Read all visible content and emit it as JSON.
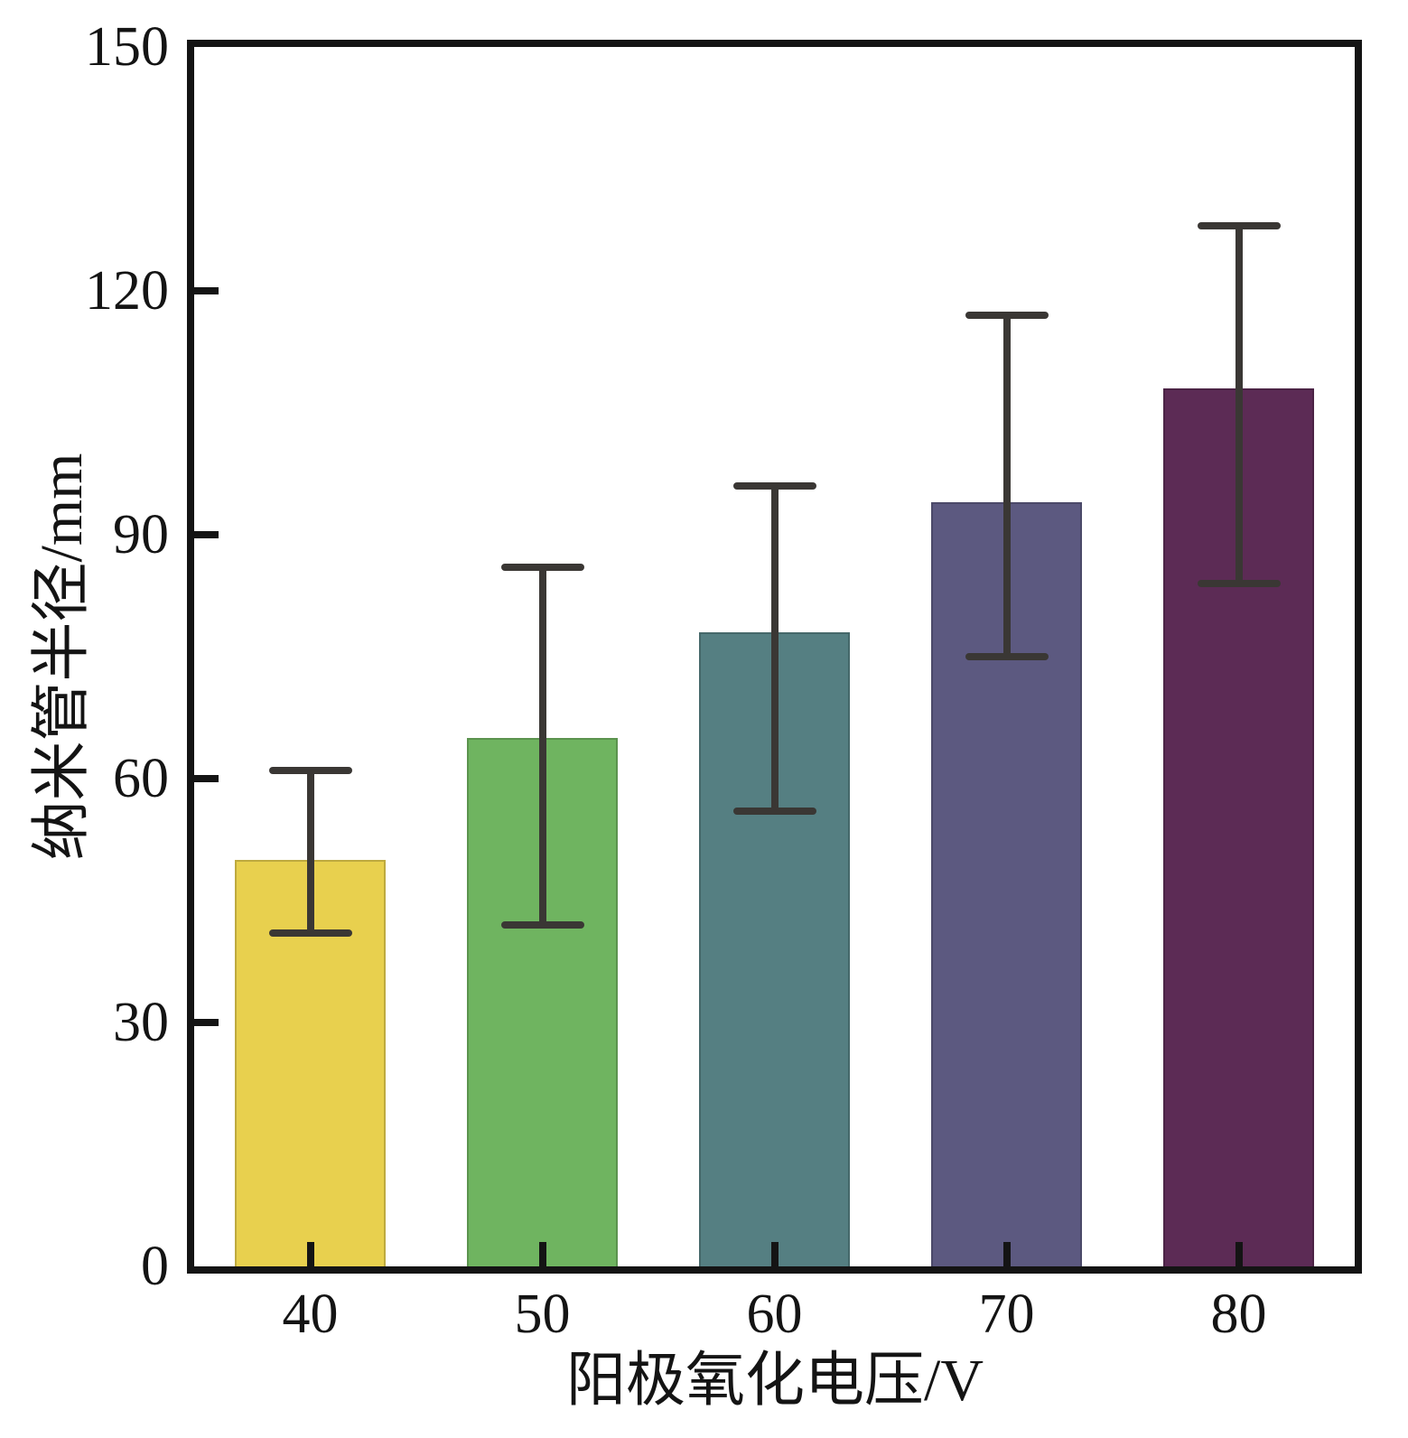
{
  "chart_data": {
    "type": "bar",
    "title": "",
    "xlabel": "阳极氧化电压/V",
    "ylabel": "纳米管半径/mm",
    "categories": [
      "40",
      "50",
      "60",
      "70",
      "80"
    ],
    "values": [
      50,
      65,
      78,
      94,
      108
    ],
    "errors": [
      {
        "low": 41,
        "high": 61
      },
      {
        "low": 42,
        "high": 86
      },
      {
        "low": 56,
        "high": 96
      },
      {
        "low": 75,
        "high": 117
      },
      {
        "low": 84,
        "high": 128
      }
    ],
    "bar_colors": [
      "#E8D04E",
      "#6FB460",
      "#557F82",
      "#5C5980",
      "#5C2B55"
    ],
    "error_bar_color": "#3A3734",
    "axis_color": "#141414",
    "y_ticks": [
      0,
      30,
      60,
      90,
      120,
      150
    ],
    "ylim": [
      0,
      150
    ],
    "grid": false,
    "legend": "none"
  }
}
